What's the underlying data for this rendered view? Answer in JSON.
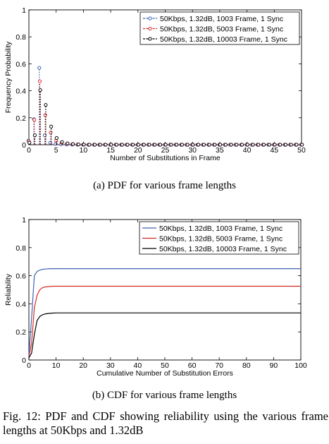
{
  "colors": {
    "blue": "#3f63b4",
    "red": "#d52b2b",
    "black": "#000000"
  },
  "chart_data": [
    {
      "type": "stem",
      "xlabel": "Number of Substitutions in Frame",
      "ylabel": "Frequency Probability",
      "xlim": [
        0,
        50
      ],
      "ylim": [
        0,
        1
      ],
      "xticks": [
        0,
        5,
        10,
        15,
        20,
        25,
        30,
        35,
        40,
        45,
        50
      ],
      "yticks": [
        0,
        0.2,
        0.4,
        0.6,
        0.8,
        1
      ],
      "ytick_labels": [
        "0",
        "0.2",
        "0.4",
        "0.6",
        "0.8",
        "1"
      ],
      "legend_position": "top-right",
      "x": [
        0,
        1,
        2,
        3,
        4,
        5,
        6,
        7,
        8,
        9,
        10,
        11,
        12,
        13,
        14,
        15,
        16,
        17,
        18,
        19,
        20,
        21,
        22,
        23,
        24,
        25,
        26,
        27,
        28,
        29,
        30,
        31,
        32,
        33,
        34,
        35,
        36,
        37,
        38,
        39,
        40,
        41,
        42,
        43,
        44,
        45,
        46,
        47,
        48,
        49,
        50
      ],
      "series": [
        {
          "name": "50Kbps, 1.32dB, 1003 Frame, 1 Sync",
          "color": "#3f63b4",
          "values": [
            0.03,
            0.19,
            0.57,
            0.07,
            0.015,
            0.006,
            0.003,
            0.002,
            0.001,
            0,
            0,
            0,
            0,
            0,
            0,
            0,
            0,
            0,
            0,
            0,
            0,
            0,
            0,
            0,
            0,
            0,
            0,
            0,
            0,
            0,
            0,
            0,
            0,
            0,
            0,
            0,
            0,
            0,
            0,
            0,
            0,
            0,
            0,
            0,
            0,
            0,
            0,
            0,
            0,
            0,
            0
          ]
        },
        {
          "name": "50Kbps, 1.32dB, 5003 Frame, 1 Sync",
          "color": "#d52b2b",
          "values": [
            0.025,
            0.185,
            0.47,
            0.22,
            0.09,
            0.03,
            0.015,
            0.008,
            0.004,
            0.002,
            0.001,
            0,
            0,
            0,
            0,
            0,
            0,
            0,
            0,
            0,
            0,
            0,
            0,
            0,
            0,
            0,
            0,
            0,
            0,
            0,
            0,
            0,
            0,
            0,
            0,
            0,
            0,
            0,
            0,
            0,
            0,
            0,
            0,
            0,
            0,
            0,
            0,
            0,
            0,
            0,
            0
          ]
        },
        {
          "name": "50Kbps, 1.32dB, 10003 Frame, 1 Sync",
          "color": "#000000",
          "values": [
            0.015,
            0.07,
            0.405,
            0.295,
            0.135,
            0.05,
            0.02,
            0.01,
            0.005,
            0.002,
            0.001,
            0,
            0,
            0,
            0,
            0,
            0,
            0,
            0,
            0,
            0,
            0,
            0,
            0,
            0,
            0,
            0,
            0,
            0,
            0,
            0,
            0,
            0,
            0,
            0,
            0,
            0,
            0,
            0,
            0,
            0,
            0,
            0,
            0,
            0,
            0,
            0,
            0,
            0,
            0,
            0
          ]
        }
      ]
    },
    {
      "type": "line",
      "xlabel": "Cumulative Number of Substitution Errors",
      "ylabel": "Reliability",
      "xlim": [
        0,
        100
      ],
      "ylim": [
        0,
        1
      ],
      "xticks": [
        0,
        10,
        20,
        30,
        40,
        50,
        60,
        70,
        80,
        90,
        100
      ],
      "yticks": [
        0,
        0.2,
        0.4,
        0.6,
        0.8,
        1
      ],
      "ytick_labels": [
        "0",
        "0.2",
        "0.4",
        "0.6",
        "0.8",
        "1"
      ],
      "legend_position": "top-right",
      "x": [
        0,
        1,
        2,
        3,
        4,
        5,
        6,
        7,
        8,
        9,
        10,
        100
      ],
      "series": [
        {
          "name": "50Kbps, 1.32dB, 1003 Frame, 1 Sync",
          "color": "#3f63b4",
          "values": [
            0.03,
            0.3,
            0.6,
            0.63,
            0.64,
            0.645,
            0.648,
            0.649,
            0.65,
            0.65,
            0.65,
            0.65
          ]
        },
        {
          "name": "50Kbps, 1.32dB, 5003 Frame, 1 Sync",
          "color": "#d52b2b",
          "values": [
            0.025,
            0.12,
            0.37,
            0.46,
            0.5,
            0.515,
            0.52,
            0.522,
            0.524,
            0.525,
            0.525,
            0.525
          ]
        },
        {
          "name": "50Kbps, 1.32dB, 10003 Frame, 1 Sync",
          "color": "#000000",
          "values": [
            0.015,
            0.05,
            0.18,
            0.28,
            0.31,
            0.322,
            0.328,
            0.331,
            0.333,
            0.334,
            0.335,
            0.335
          ]
        }
      ]
    }
  ],
  "subcaptions": {
    "a": "(a) PDF for various frame lengths",
    "b": "(b) CDF for various frame lengths"
  },
  "figure_caption": "Fig. 12: PDF and CDF showing reliability using the various frame lengths at 50Kbps and 1.32dB"
}
